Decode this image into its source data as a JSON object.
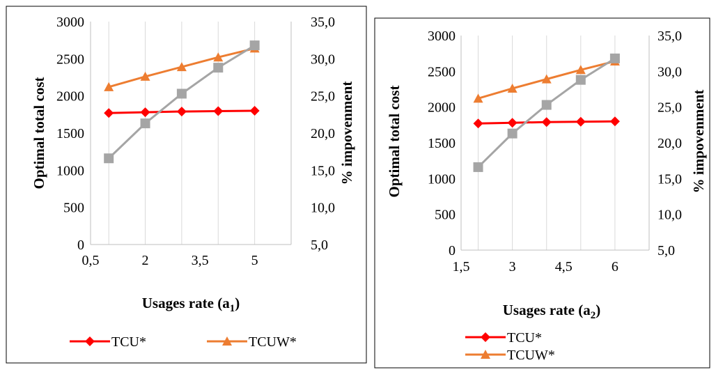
{
  "chart_data": [
    {
      "type": "line",
      "x_ticks": [
        "0,5",
        "2",
        "3,5",
        "5"
      ],
      "x": [
        1,
        2,
        3,
        4,
        5
      ],
      "xlim": [
        0.5,
        6
      ],
      "y_ticks": [
        "0",
        "500",
        "1000",
        "1500",
        "2000",
        "2500",
        "3000"
      ],
      "ylim": [
        0,
        3000
      ],
      "y2_ticks": [
        "5,0",
        "10,0",
        "15,0",
        "20,0",
        "25,0",
        "30,0",
        "35,0"
      ],
      "y2lim": [
        5,
        35
      ],
      "xlabel": "Usages rate (a",
      "xlabel_sub": "1",
      "xlabel_close": ")",
      "ylabel": "Optimal total cost",
      "y2label": "% impovenment",
      "grid": "vertical",
      "legend_position": "bottom",
      "series": [
        {
          "name": "TCU*",
          "axis": "left",
          "color": "#ff0000",
          "marker": "diamond",
          "values": [
            1770,
            1780,
            1790,
            1795,
            1800
          ]
        },
        {
          "name": "TCUW*",
          "axis": "left",
          "color": "#ed7d31",
          "marker": "triangle",
          "values": [
            2120,
            2260,
            2390,
            2520,
            2640
          ]
        },
        {
          "name": "",
          "axis": "right",
          "color": "#a5a5a5",
          "marker": "square",
          "values": [
            16.6,
            21.3,
            25.3,
            28.8,
            31.8
          ]
        }
      ]
    },
    {
      "type": "line",
      "x_ticks": [
        "1,5",
        "3",
        "4,5",
        "6"
      ],
      "x": [
        2,
        3,
        4,
        5,
        6
      ],
      "xlim": [
        1.5,
        7
      ],
      "y_ticks": [
        "0",
        "500",
        "1000",
        "1500",
        "2000",
        "2500",
        "3000"
      ],
      "ylim": [
        0,
        3000
      ],
      "y2_ticks": [
        "5,0",
        "10,0",
        "15,0",
        "20,0",
        "25,0",
        "30,0",
        "35,0"
      ],
      "y2lim": [
        5,
        35
      ],
      "xlabel": "Usages rate (a",
      "xlabel_sub": "2",
      "xlabel_close": ")",
      "ylabel": "Optimal total cost",
      "y2label": "% impovenment",
      "grid": "vertical",
      "legend_position": "bottom",
      "series": [
        {
          "name": "TCU*",
          "axis": "left",
          "color": "#ff0000",
          "marker": "diamond",
          "values": [
            1770,
            1780,
            1790,
            1795,
            1800
          ]
        },
        {
          "name": "TCUW*",
          "axis": "left",
          "color": "#ed7d31",
          "marker": "triangle",
          "values": [
            2120,
            2260,
            2390,
            2520,
            2640
          ]
        },
        {
          "name": "",
          "axis": "right",
          "color": "#a5a5a5",
          "marker": "square",
          "values": [
            16.6,
            21.3,
            25.3,
            28.8,
            31.8
          ]
        }
      ]
    }
  ]
}
